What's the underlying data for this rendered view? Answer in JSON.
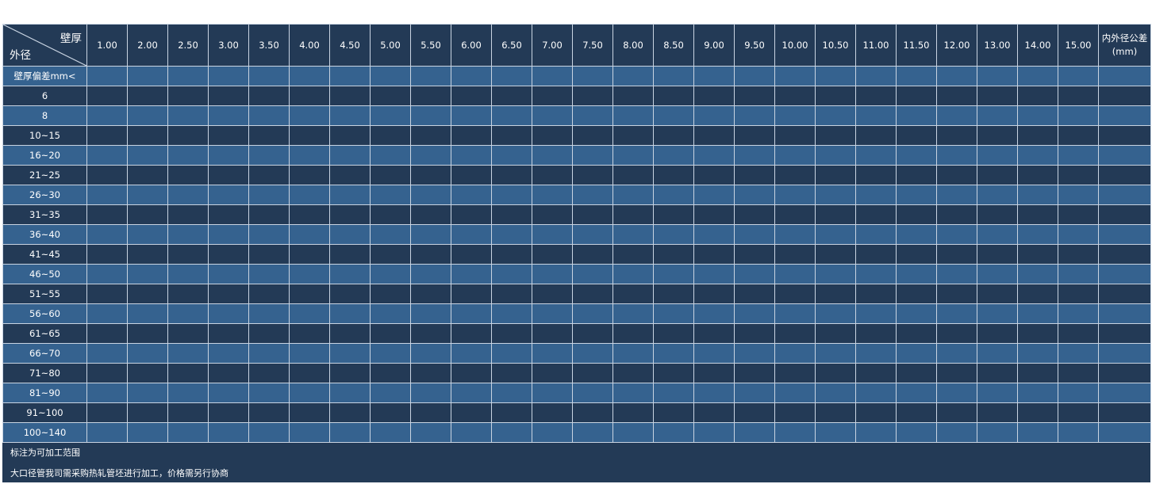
{
  "table": {
    "corner": {
      "top": "壁厚",
      "bottom": "外径"
    },
    "wall_thicknesses": [
      "1.00",
      "2.00",
      "2.50",
      "3.00",
      "3.50",
      "4.00",
      "4.50",
      "5.00",
      "5.50",
      "6.00",
      "6.50",
      "7.00",
      "7.50",
      "8.00",
      "8.50",
      "9.00",
      "9.50",
      "10.00",
      "10.50",
      "11.00",
      "11.50",
      "12.00",
      "13.00",
      "14.00",
      "15.00"
    ],
    "tolerance_header": {
      "line1": "内外径公差",
      "line2": "(mm)"
    },
    "row_labels": [
      "壁厚偏差mm<",
      "6",
      "8",
      "10~15",
      "16~20",
      "21~25",
      "26~30",
      "31~35",
      "36~40",
      "41~45",
      "46~50",
      "51~55",
      "56~60",
      "61~65",
      "66~70",
      "71~80",
      "81~90",
      "91~100",
      "100~140"
    ]
  },
  "notes": [
    "标注为可加工范围",
    "大口径管我司需采购热轧管坯进行加工，价格需另行协商"
  ],
  "colors": {
    "dark": "#233a56",
    "light": "#35628f",
    "grid": "#c9d4e2"
  }
}
